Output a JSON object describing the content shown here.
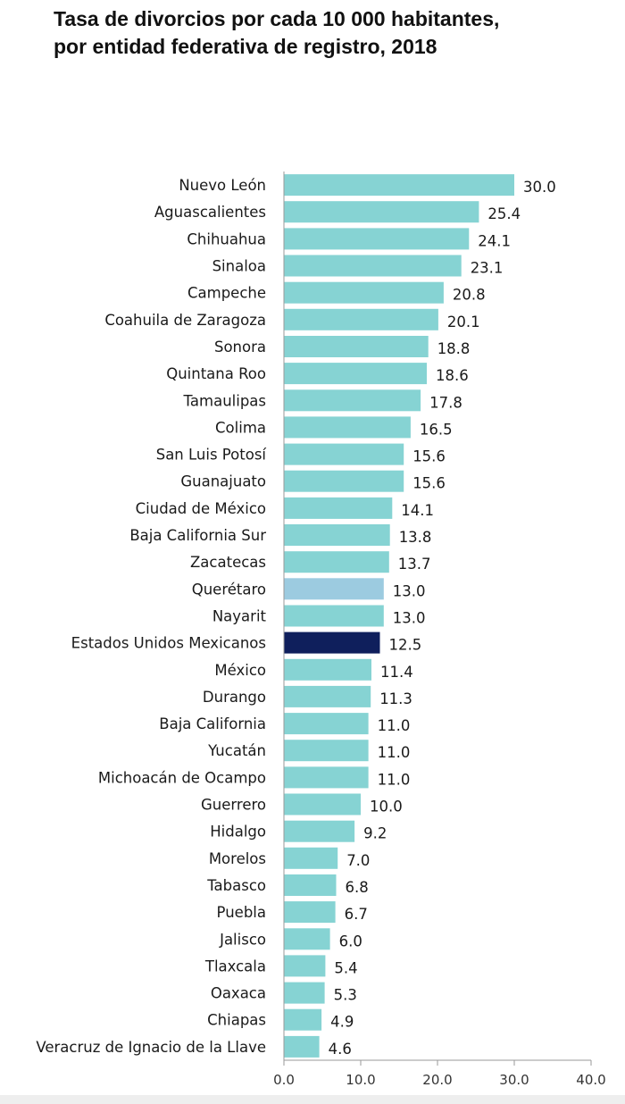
{
  "chart_data": {
    "type": "bar",
    "orientation": "horizontal",
    "title": "Tasa de divorcios por cada 10 000 habitantes, por entidad federativa de registro, 2018",
    "title_lines": [
      "Tasa de divorcios por cada 10 000 habitantes,",
      "por entidad federativa de registro, 2018"
    ],
    "xlabel": "",
    "ylabel": "",
    "xlim": [
      0,
      40
    ],
    "xticks": [
      0,
      10,
      20,
      30,
      40
    ],
    "xtick_labels": [
      "0.0",
      "10.0",
      "20.0",
      "30.0",
      "40.0"
    ],
    "grid": false,
    "legend": "none",
    "colors": {
      "default": "#86d3d3",
      "national": "#0f1f5c",
      "highlight": "#9ccbe0"
    },
    "categories": [
      "Nuevo León",
      "Aguascalientes",
      "Chihuahua",
      "Sinaloa",
      "Campeche",
      "Coahuila de Zaragoza",
      "Sonora",
      "Quintana Roo",
      "Tamaulipas",
      "Colima",
      "San Luis Potosí",
      "Guanajuato",
      "Ciudad de México",
      "Baja California Sur",
      "Zacatecas",
      "Querétaro",
      "Nayarit",
      "Estados Unidos Mexicanos",
      "México",
      "Durango",
      "Baja California",
      "Yucatán",
      "Michoacán de Ocampo",
      "Guerrero",
      "Hidalgo",
      "Morelos",
      "Tabasco",
      "Puebla",
      "Jalisco",
      "Tlaxcala",
      "Oaxaca",
      "Chiapas",
      "Veracruz de Ignacio de la Llave"
    ],
    "values": [
      30.0,
      25.4,
      24.1,
      23.1,
      20.8,
      20.1,
      18.8,
      18.6,
      17.8,
      16.5,
      15.6,
      15.6,
      14.1,
      13.8,
      13.7,
      13.0,
      13.0,
      12.5,
      11.4,
      11.3,
      11.0,
      11.0,
      11.0,
      10.0,
      9.2,
      7.0,
      6.8,
      6.7,
      6.0,
      5.4,
      5.3,
      4.9,
      4.6
    ],
    "value_labels": [
      "30.0",
      "25.4",
      "24.1",
      "23.1",
      "20.8",
      "20.1",
      "18.8",
      "18.6",
      "17.8",
      "16.5",
      "15.6",
      "15.6",
      "14.1",
      "13.8",
      "13.7",
      "13.0",
      "13.0",
      "12.5",
      "11.4",
      "11.3",
      "11.0",
      "11.0",
      "11.0",
      "10.0",
      "9.2",
      "7.0",
      "6.8",
      "6.7",
      "6.0",
      "5.4",
      "5.3",
      "4.9",
      "4.6"
    ],
    "bar_color_keys": [
      "default",
      "default",
      "default",
      "default",
      "default",
      "default",
      "default",
      "default",
      "default",
      "default",
      "default",
      "default",
      "default",
      "default",
      "default",
      "highlight",
      "default",
      "national",
      "default",
      "default",
      "default",
      "default",
      "default",
      "default",
      "default",
      "default",
      "default",
      "default",
      "default",
      "default",
      "default",
      "default",
      "default"
    ]
  }
}
